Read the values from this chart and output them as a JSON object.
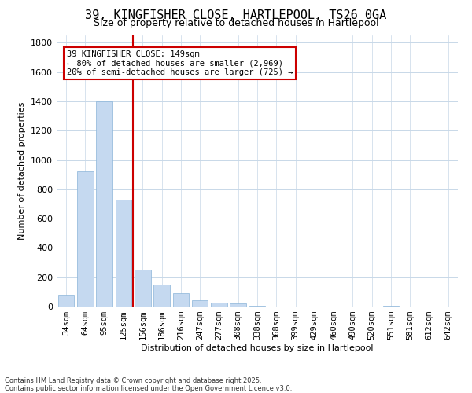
{
  "title": "39, KINGFISHER CLOSE, HARTLEPOOL, TS26 0GA",
  "subtitle": "Size of property relative to detached houses in Hartlepool",
  "xlabel": "Distribution of detached houses by size in Hartlepool",
  "ylabel": "Number of detached properties",
  "bar_labels": [
    "34sqm",
    "64sqm",
    "95sqm",
    "125sqm",
    "156sqm",
    "186sqm",
    "216sqm",
    "247sqm",
    "277sqm",
    "308sqm",
    "338sqm",
    "368sqm",
    "399sqm",
    "429sqm",
    "460sqm",
    "490sqm",
    "520sqm",
    "551sqm",
    "581sqm",
    "612sqm",
    "642sqm"
  ],
  "bar_values": [
    80,
    920,
    1400,
    730,
    250,
    150,
    90,
    45,
    25,
    20,
    5,
    2,
    1,
    0,
    0,
    0,
    0,
    8,
    0,
    0,
    0
  ],
  "bar_color": "#c5d9f0",
  "bar_edgecolor": "#8ab4d8",
  "vline_x_index": 3.5,
  "vline_color": "#cc0000",
  "annotation_text": "39 KINGFISHER CLOSE: 149sqm\n← 80% of detached houses are smaller (2,969)\n20% of semi-detached houses are larger (725) →",
  "annotation_box_color": "#cc0000",
  "ylim": [
    0,
    1850
  ],
  "yticks": [
    0,
    200,
    400,
    600,
    800,
    1000,
    1200,
    1400,
    1600,
    1800
  ],
  "footer_text": "Contains HM Land Registry data © Crown copyright and database right 2025.\nContains public sector information licensed under the Open Government Licence v3.0.",
  "background_color": "#ffffff",
  "grid_color": "#c8d8e8",
  "title_fontsize": 11,
  "subtitle_fontsize": 9,
  "xlabel_fontsize": 8,
  "ylabel_fontsize": 8,
  "tick_fontsize": 8,
  "xtick_fontsize": 7.5,
  "footer_fontsize": 6,
  "annot_fontsize": 7.5
}
